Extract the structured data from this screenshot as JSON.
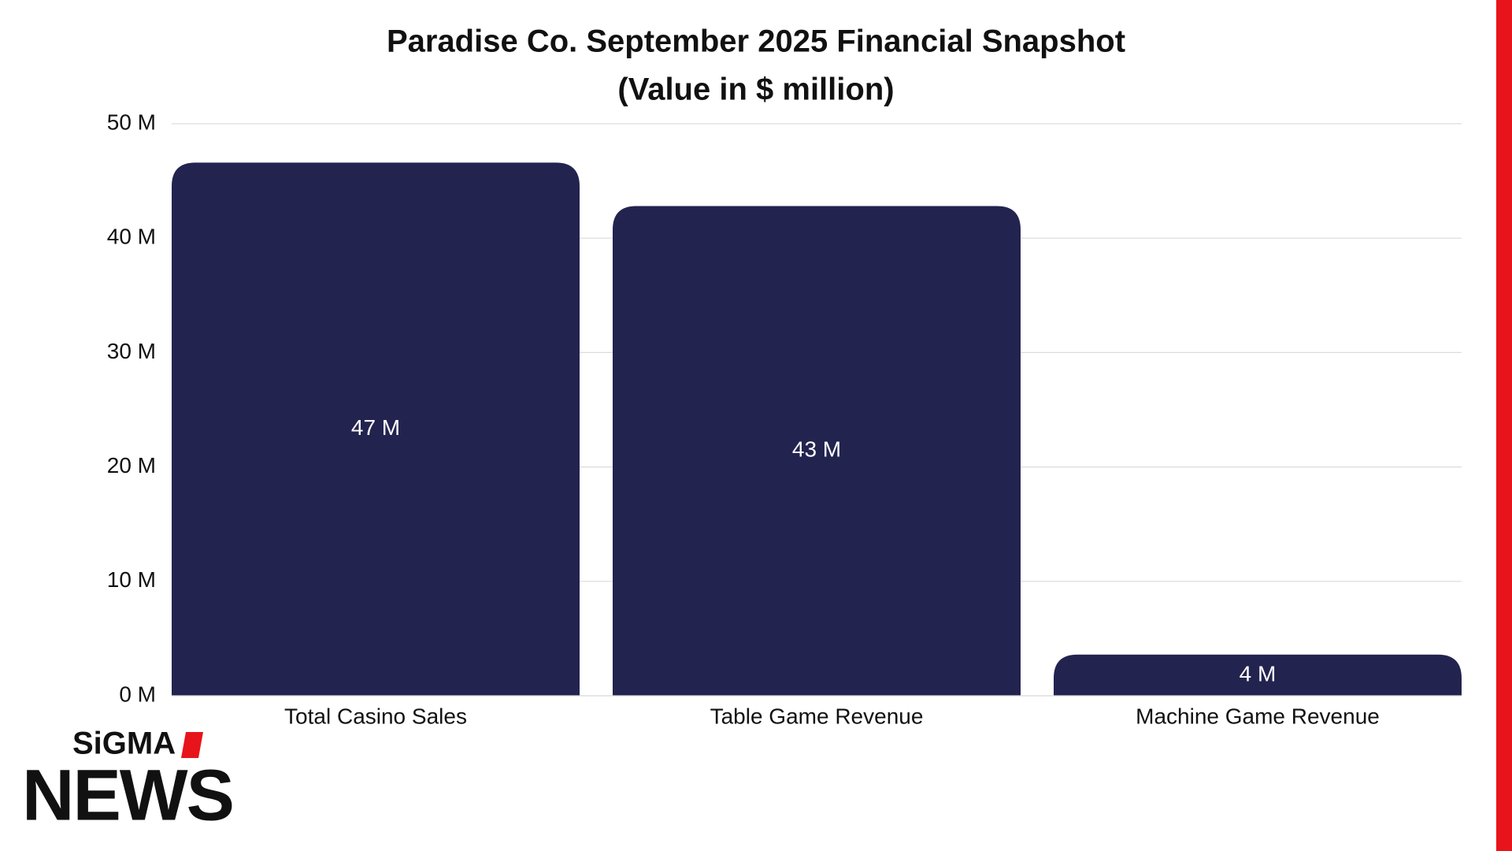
{
  "chart_data": {
    "type": "bar",
    "title": "Paradise Co. September 2025 Financial Snapshot",
    "subtitle": "(Value in $ million)",
    "categories": [
      "Total Casino Sales",
      "Table Game Revenue",
      "Machine Game Revenue"
    ],
    "values": [
      46.6,
      42.8,
      3.6
    ],
    "value_labels": [
      "47 M",
      "43 M",
      "4 M"
    ],
    "color": "#232350",
    "ylim": [
      0,
      50
    ],
    "yticks": [
      {
        "value": 0,
        "label": "0 M"
      },
      {
        "value": 10,
        "label": "10 M"
      },
      {
        "value": 20,
        "label": "20 M"
      },
      {
        "value": 30,
        "label": "30 M"
      },
      {
        "value": 40,
        "label": "40 M"
      },
      {
        "value": 50,
        "label": "50 M"
      }
    ],
    "grid": true
  },
  "logo": {
    "brand": "SiGMA",
    "name": "NEWS"
  }
}
